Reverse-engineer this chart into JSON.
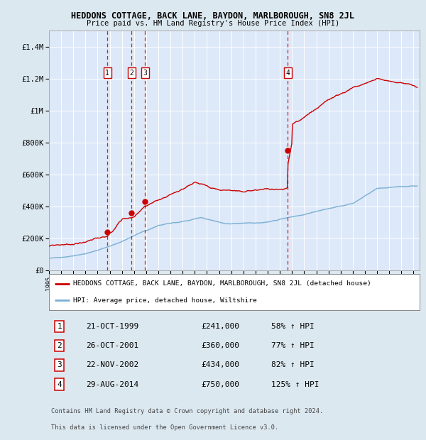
{
  "title": "HEDDONS COTTAGE, BACK LANE, BAYDON, MARLBOROUGH, SN8 2JL",
  "subtitle": "Price paid vs. HM Land Registry's House Price Index (HPI)",
  "bg_color": "#dce8f0",
  "plot_bg_color": "#dde8f8",
  "grid_color": "#ffffff",
  "red_line_color": "#cc0000",
  "blue_line_color": "#7aafd4",
  "sale_marker_color": "#cc0000",
  "vline_color": "#cc0000",
  "transactions": [
    {
      "label": "1",
      "year": 1999.8,
      "price": 241000,
      "date": "21-OCT-1999",
      "pct": "58%"
    },
    {
      "label": "2",
      "year": 2001.8,
      "price": 360000,
      "date": "26-OCT-2001",
      "pct": "77%"
    },
    {
      "label": "3",
      "year": 2002.9,
      "price": 434000,
      "date": "22-NOV-2002",
      "pct": "82%"
    },
    {
      "label": "4",
      "year": 2014.66,
      "price": 750000,
      "date": "29-AUG-2014",
      "pct": "125%"
    }
  ],
  "legend_entries": [
    "HEDDONS COTTAGE, BACK LANE, BAYDON, MARLBOROUGH, SN8 2JL (detached house)",
    "HPI: Average price, detached house, Wiltshire"
  ],
  "footer_lines": [
    "Contains HM Land Registry data © Crown copyright and database right 2024.",
    "This data is licensed under the Open Government Licence v3.0."
  ],
  "xmin": 1995,
  "xmax": 2025.5,
  "ymin": 0,
  "ymax": 1500000
}
